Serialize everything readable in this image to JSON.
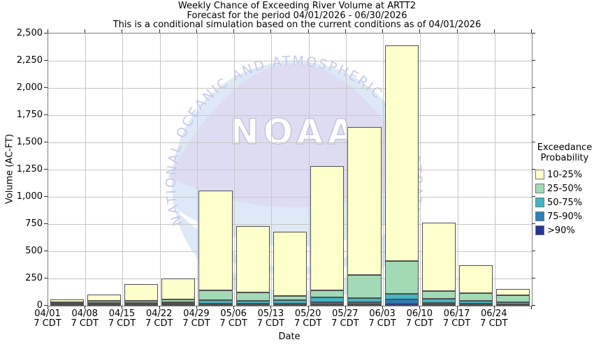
{
  "title": {
    "line1": "Weekly Chance of Exceeding River Volume at ARTT2",
    "line2": "Forecast for the period 04/01/2026 - 06/30/2026",
    "line3": "This is a conditional simulation based on the current conditions as of 04/01/2026"
  },
  "watermark": {
    "org_arc_text": "NATIONAL OCEANIC AND ATMOSPHERIC ADMINISTRATION",
    "acronym": "NOAA"
  },
  "legend": {
    "title_line1": "Exceedance",
    "title_line2": "Probability"
  },
  "chart_data": {
    "type": "bar",
    "stacked": true,
    "title": "Weekly Chance of Exceeding River Volume at ARTT2",
    "xlabel": "Date",
    "ylabel": "Volume (AC-FT)",
    "ylim": [
      0,
      2500
    ],
    "ytick_step": 250,
    "ytick_labels": [
      "0",
      "250",
      "500",
      "750",
      "1,000",
      "1,250",
      "1,500",
      "1,750",
      "2,000",
      "2,250",
      "2,500"
    ],
    "grid": true,
    "legend_position": "right",
    "categories": [
      "04/01",
      "04/08",
      "04/15",
      "04/22",
      "04/29",
      "05/06",
      "05/13",
      "05/20",
      "05/27",
      "06/03",
      "06/10",
      "06/17",
      "06/24"
    ],
    "tick_sublabel": "7 CDT",
    "series": [
      {
        "name": ">90%",
        "color": "#253494",
        "values": [
          8,
          10,
          10,
          12,
          13,
          13,
          13,
          14,
          14,
          20,
          12,
          10,
          8
        ]
      },
      {
        "name": "75-90%",
        "color": "#2C7FB8",
        "values": [
          6,
          6,
          7,
          7,
          8,
          8,
          8,
          18,
          18,
          38,
          14,
          10,
          6
        ]
      },
      {
        "name": "50-75%",
        "color": "#41B6C4",
        "values": [
          8,
          10,
          10,
          11,
          30,
          26,
          30,
          45,
          38,
          52,
          38,
          25,
          16
        ]
      },
      {
        "name": "25-50%",
        "color": "#A1DAB4",
        "values": [
          8,
          22,
          18,
          30,
          89,
          78,
          39,
          63,
          210,
          300,
          71,
          70,
          65
        ]
      },
      {
        "name": "10-25%",
        "color": "#FFFFCC",
        "values": [
          30,
          52,
          155,
          190,
          920,
          605,
          590,
          1145,
          1360,
          1980,
          625,
          260,
          60
        ]
      }
    ],
    "totals": [
      60,
      100,
      200,
      250,
      1060,
      730,
      680,
      1285,
      1640,
      2390,
      760,
      375,
      155
    ]
  }
}
